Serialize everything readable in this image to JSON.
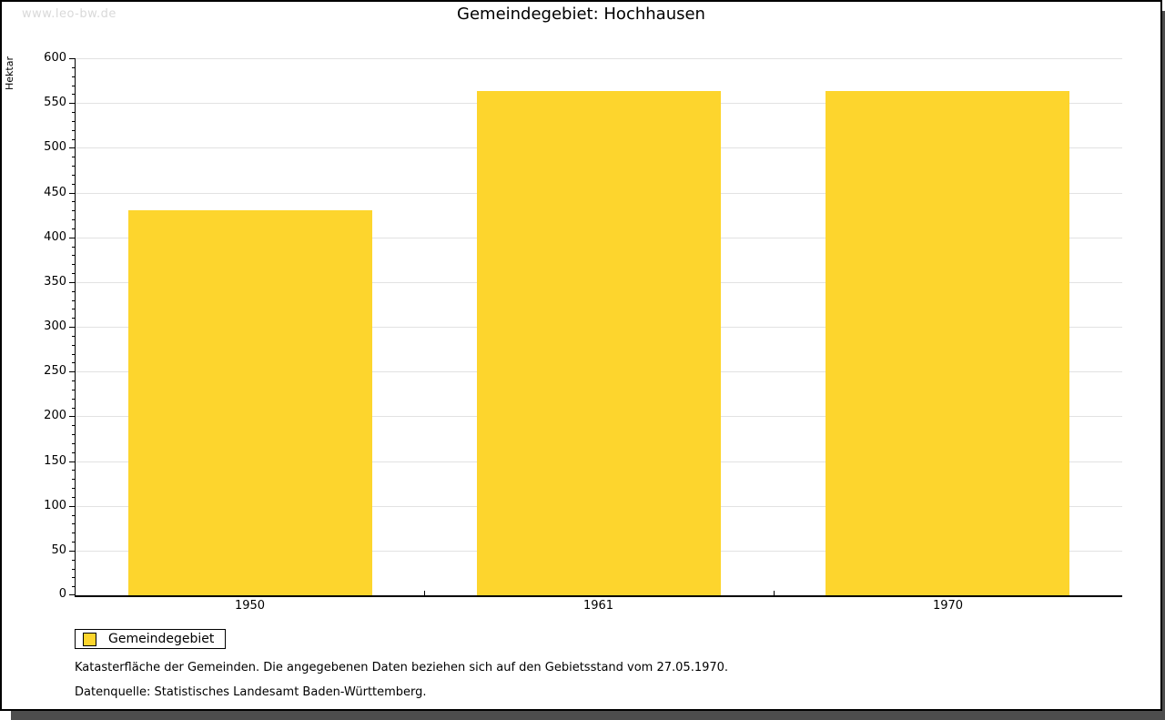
{
  "watermark": "www.leo-bw.de",
  "chart_data": {
    "type": "bar",
    "title": "Gemeindegebiet: Hochhausen",
    "ylabel": "Hektar",
    "xlabel": "",
    "categories": [
      "1950",
      "1961",
      "1970"
    ],
    "series": [
      {
        "name": "Gemeindegebiet",
        "values": [
          430,
          563,
          563
        ]
      }
    ],
    "ylim": [
      0,
      600
    ],
    "ytick_step": 50,
    "minor_tick_step": 10,
    "grid": "horizontal-major",
    "legend_position": "bottom-left",
    "bar_color": "#FDD52D",
    "bar_width_fraction": 0.7
  },
  "notes": {
    "line1": "Katasterfläche der Gemeinden. Die angegebenen Daten beziehen sich auf den Gebietsstand vom 27.05.1970.",
    "line2": "Datenquelle: Statistisches Landesamt Baden-Württemberg."
  },
  "colors": {
    "bar": "#FDD52D",
    "grid": "#E2E2E2",
    "watermark": "#D9D9D9",
    "shadow": "#4D4D4D",
    "text": "#000000"
  }
}
